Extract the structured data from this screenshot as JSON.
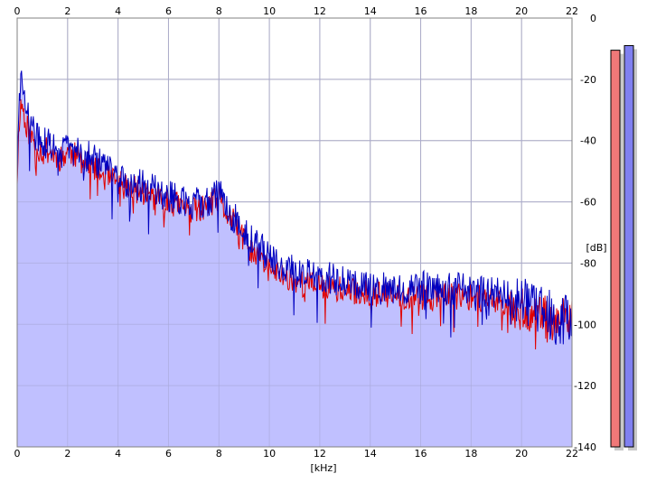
{
  "chart_data": {
    "type": "area",
    "x_unit_label": "[kHz]",
    "y_unit_label": "[dB]",
    "xlim": [
      0,
      22
    ],
    "ylim": [
      -140,
      0
    ],
    "x_ticks": [
      0,
      2,
      4,
      6,
      8,
      10,
      12,
      14,
      16,
      18,
      20,
      22
    ],
    "y_ticks": [
      0,
      -20,
      -40,
      -60,
      -80,
      -100,
      -120,
      -140
    ],
    "grid": true,
    "series": [
      {
        "color": "#e00000",
        "x": [
          0.0,
          0.1,
          0.2,
          0.3,
          0.5,
          0.8,
          1.0,
          1.2,
          1.5,
          1.8,
          2.0,
          2.5,
          3.0,
          3.5,
          4.0,
          5.0,
          6.0,
          7.0,
          7.5,
          8.0,
          8.3,
          8.7,
          9.0,
          9.5,
          10.0,
          10.5,
          11.0,
          11.5,
          12.0,
          13.0,
          14.0,
          15.0,
          16.0,
          17.0,
          18.0,
          19.0,
          20.0,
          21.0,
          22.0
        ],
        "values": [
          -52,
          -30,
          -28,
          -33,
          -38,
          -42,
          -44,
          -43,
          -45,
          -46,
          -43,
          -46,
          -49,
          -52,
          -54,
          -57,
          -60,
          -63,
          -62,
          -59,
          -64,
          -68,
          -73,
          -78,
          -82,
          -84,
          -86,
          -87,
          -87,
          -89,
          -90,
          -91,
          -91,
          -91,
          -91,
          -92,
          -95,
          -98,
          -99
        ]
      },
      {
        "color": "#0000c0",
        "x": [
          0.0,
          0.1,
          0.2,
          0.3,
          0.5,
          0.8,
          1.0,
          1.2,
          1.5,
          1.8,
          2.0,
          2.5,
          3.0,
          3.5,
          4.0,
          5.0,
          6.0,
          7.0,
          7.5,
          8.0,
          8.3,
          8.7,
          9.0,
          9.5,
          10.0,
          10.5,
          11.0,
          11.5,
          12.0,
          13.0,
          14.0,
          15.0,
          16.0,
          17.0,
          18.0,
          19.0,
          20.0,
          21.0,
          22.0
        ],
        "values": [
          -50,
          -25,
          -21,
          -28,
          -35,
          -39,
          -41,
          -41,
          -43,
          -44,
          -42,
          -44,
          -46,
          -49,
          -52,
          -55,
          -58,
          -61,
          -60,
          -57,
          -62,
          -66,
          -70,
          -74,
          -78,
          -81,
          -83,
          -84,
          -84,
          -86,
          -87,
          -88,
          -88,
          -88,
          -89,
          -90,
          -93,
          -97,
          -100
        ]
      }
    ]
  },
  "level_meters": {
    "ylim": [
      -140,
      0
    ],
    "bars": [
      {
        "color": "#f07878",
        "value": -10.5
      },
      {
        "color": "#8080f0",
        "value": -9.0
      }
    ]
  }
}
